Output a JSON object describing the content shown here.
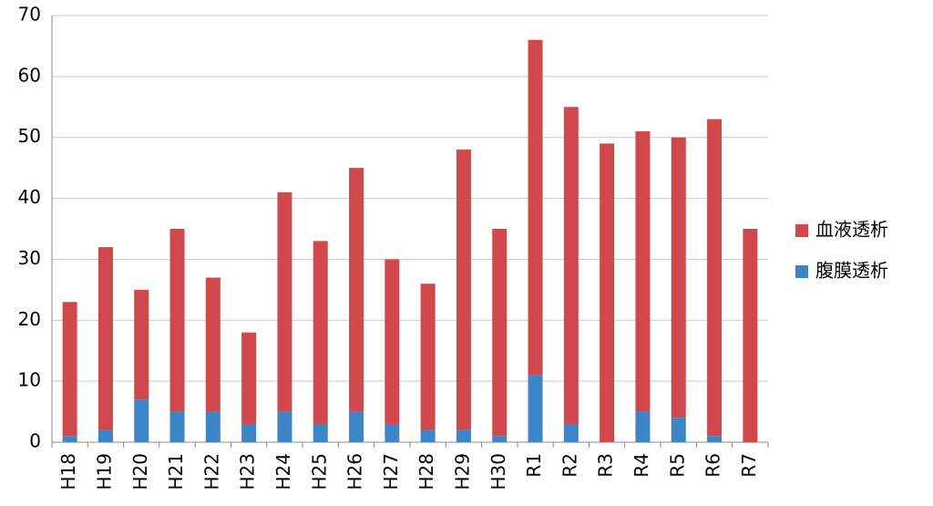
{
  "chart_data": {
    "type": "stacked_bar",
    "categories": [
      "H18",
      "H19",
      "H20",
      "H21",
      "H22",
      "H23",
      "H24",
      "H25",
      "H26",
      "H27",
      "H28",
      "H29",
      "H30",
      "R1",
      "R2",
      "R3",
      "R4",
      "R5",
      "R6",
      "R7"
    ],
    "series": [
      {
        "name": "血液透析",
        "color": "#d0484b",
        "values": [
          22,
          30,
          18,
          30,
          22,
          15,
          36,
          30,
          40,
          27,
          24,
          46,
          34,
          55,
          52,
          49,
          46,
          46,
          52,
          35
        ]
      },
      {
        "name": "腹膜透析",
        "color": "#3d85c6",
        "values": [
          1,
          2,
          7,
          5,
          5,
          3,
          5,
          3,
          5,
          3,
          2,
          2,
          1,
          11,
          3,
          0,
          5,
          4,
          1,
          0
        ]
      }
    ],
    "ylim": [
      0,
      70
    ],
    "yticks": [
      0,
      10,
      20,
      30,
      40,
      50,
      60,
      70
    ],
    "grid": true,
    "legend": "right"
  }
}
